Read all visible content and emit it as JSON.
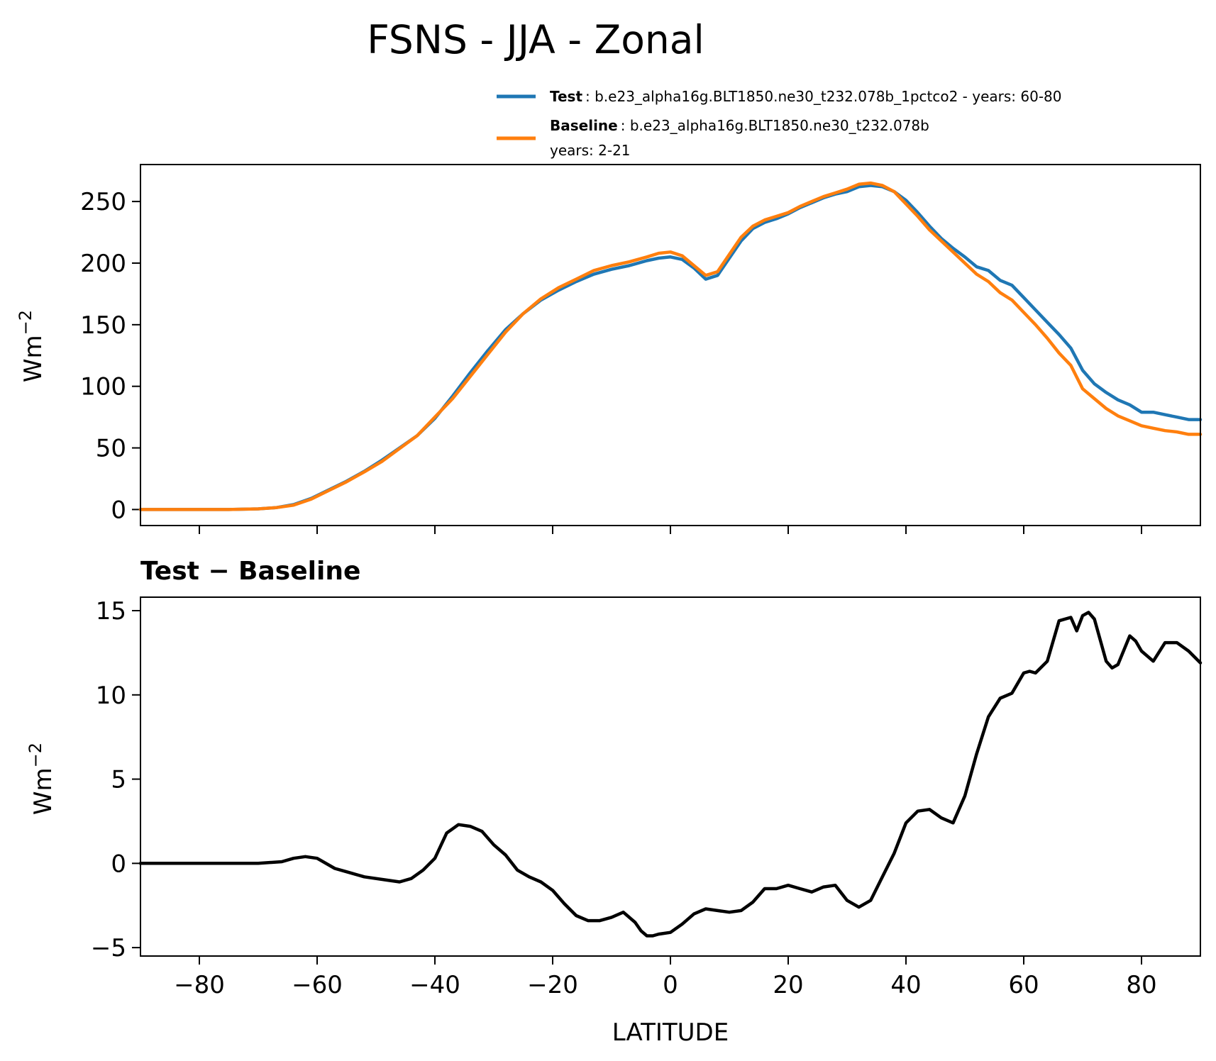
{
  "figure": {
    "title": "FSNS - JJA - Zonal"
  },
  "legend": {
    "test": {
      "name": "Test",
      "text": ": b.e23_alpha16g.BLT1850.ne30_t232.078b_1pctco2 - years: 60-80",
      "color": "#1f77b4"
    },
    "baseline": {
      "name": "Baseline",
      "text": ": b.e23_alpha16g.BLT1850.ne30_t232.078b",
      "text2": "years: 2-21",
      "color": "#ff7f0e"
    }
  },
  "chart_data": [
    {
      "type": "line",
      "title": "",
      "xlabel": "",
      "ylabel": "Wm",
      "ylabel_exponent": "−2",
      "xlim": [
        -90,
        90
      ],
      "ylim": [
        -13,
        280
      ],
      "xticks": [
        -80,
        -60,
        -40,
        -20,
        0,
        20,
        40,
        60,
        80
      ],
      "yticks": [
        0,
        50,
        100,
        150,
        200,
        250
      ],
      "ytick_labels": [
        "0",
        "50",
        "100",
        "150",
        "200",
        "250"
      ],
      "x": [
        -90,
        -85,
        -80,
        -75,
        -70,
        -67,
        -64,
        -61,
        -58,
        -55,
        -52,
        -49,
        -46,
        -43,
        -40,
        -37,
        -34,
        -31,
        -28,
        -25,
        -22,
        -19,
        -16,
        -13,
        -10,
        -7,
        -4,
        -2,
        0,
        2,
        4,
        6,
        8,
        10,
        12,
        14,
        16,
        18,
        20,
        22,
        24,
        26,
        28,
        30,
        32,
        34,
        36,
        38,
        40,
        42,
        44,
        46,
        48,
        50,
        52,
        54,
        56,
        58,
        60,
        62,
        64,
        66,
        68,
        70,
        72,
        74,
        76,
        78,
        80,
        82,
        84,
        86,
        88,
        90
      ],
      "series": [
        {
          "name": "Test",
          "color": "#1f77b4",
          "values": [
            0,
            0,
            0,
            0,
            0.5,
            1.5,
            4,
            9,
            16,
            23,
            31,
            40,
            50,
            60,
            74,
            92,
            111,
            129,
            146,
            159,
            170,
            178,
            185,
            191,
            195,
            198,
            202,
            204,
            205,
            203,
            196,
            187,
            190,
            204,
            218,
            228,
            233,
            236,
            240,
            245,
            249,
            253,
            256,
            258,
            262,
            263,
            262,
            258,
            251,
            241,
            230,
            220,
            212,
            205,
            197,
            194,
            186,
            182,
            172,
            162,
            152,
            142,
            131,
            113,
            102,
            95,
            89,
            85,
            79,
            79,
            77,
            75,
            73,
            73
          ]
        },
        {
          "name": "Baseline",
          "color": "#ff7f0e",
          "values": [
            0,
            0,
            0,
            0,
            0.5,
            1.5,
            3.5,
            8.5,
            15.5,
            22.5,
            30.5,
            39,
            49.5,
            60,
            75,
            90,
            108,
            126,
            144,
            159,
            171,
            180,
            187,
            194,
            198,
            201,
            205,
            208,
            209,
            206,
            198,
            190,
            193,
            207,
            221,
            230,
            235,
            238,
            241,
            246,
            250,
            254,
            257,
            260,
            264,
            265,
            263,
            258,
            248,
            238,
            227,
            218,
            209,
            200,
            191,
            185,
            176,
            170,
            160,
            150,
            139,
            127,
            117,
            98,
            90,
            82,
            76,
            72,
            68,
            66,
            64,
            63,
            61,
            61
          ]
        }
      ]
    },
    {
      "type": "line",
      "title": "Test − Baseline",
      "xlabel": "LATITUDE",
      "ylabel": "Wm",
      "ylabel_exponent": "−2",
      "xlim": [
        -90,
        90
      ],
      "ylim": [
        -5.5,
        15.8
      ],
      "xticks": [
        -80,
        -60,
        -40,
        -20,
        0,
        20,
        40,
        60,
        80
      ],
      "xtick_labels": [
        "−80",
        "−60",
        "−40",
        "−20",
        "0",
        "20",
        "40",
        "60",
        "80"
      ],
      "yticks": [
        -5,
        0,
        5,
        10,
        15
      ],
      "ytick_labels": [
        "−5",
        "0",
        "5",
        "10",
        "15"
      ],
      "x": [
        -90,
        -80,
        -70,
        -66,
        -64,
        -62,
        -60,
        -57,
        -55,
        -52,
        -48,
        -46,
        -44,
        -42,
        -40,
        -38,
        -36,
        -34,
        -32,
        -30,
        -28,
        -26,
        -24,
        -22,
        -20,
        -18,
        -16,
        -14,
        -12,
        -10,
        -8,
        -6,
        -5,
        -4,
        -3,
        -2,
        0,
        2,
        4,
        6,
        8,
        10,
        12,
        14,
        16,
        18,
        20,
        22,
        24,
        26,
        28,
        30,
        32,
        34,
        36,
        38,
        40,
        42,
        44,
        46,
        48,
        50,
        52,
        54,
        56,
        58,
        60,
        61,
        62,
        64,
        66,
        68,
        69,
        70,
        71,
        72,
        74,
        75,
        76,
        78,
        79,
        80,
        82,
        84,
        86,
        88,
        90
      ],
      "series": [
        {
          "name": "Test − Baseline",
          "color": "#000000",
          "values": [
            0,
            0,
            0,
            0.1,
            0.3,
            0.4,
            0.3,
            -0.3,
            -0.5,
            -0.8,
            -1.0,
            -1.1,
            -0.9,
            -0.4,
            0.3,
            1.8,
            2.3,
            2.2,
            1.9,
            1.1,
            0.5,
            -0.4,
            -0.8,
            -1.1,
            -1.6,
            -2.4,
            -3.1,
            -3.4,
            -3.4,
            -3.2,
            -2.9,
            -3.5,
            -4.0,
            -4.3,
            -4.3,
            -4.2,
            -4.1,
            -3.6,
            -3.0,
            -2.7,
            -2.8,
            -2.9,
            -2.8,
            -2.3,
            -1.5,
            -1.5,
            -1.3,
            -1.5,
            -1.7,
            -1.4,
            -1.3,
            -2.2,
            -2.6,
            -2.2,
            -0.8,
            0.6,
            2.4,
            3.1,
            3.2,
            2.7,
            2.4,
            4.0,
            6.5,
            8.7,
            9.8,
            10.1,
            11.3,
            11.4,
            11.3,
            12.0,
            14.4,
            14.6,
            13.8,
            14.7,
            14.9,
            14.5,
            12.0,
            11.6,
            11.8,
            13.5,
            13.2,
            12.6,
            12.0,
            13.1,
            13.1,
            12.6,
            11.9
          ]
        }
      ]
    }
  ]
}
